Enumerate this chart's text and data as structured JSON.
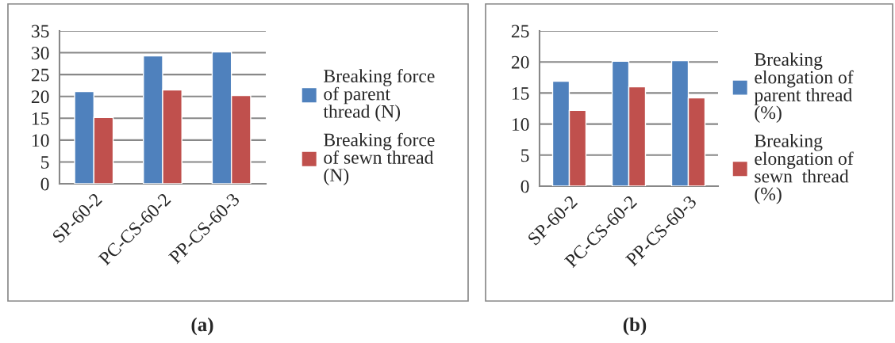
{
  "chart_data": [
    {
      "type": "bar",
      "categories": [
        "SP-60-2",
        "PC-CS-60-2",
        "PP-CS-60-3"
      ],
      "series": [
        {
          "name": "Breaking force of parent thread (N)",
          "color": "#4f81bd",
          "values": [
            21.1,
            29.3,
            30.2
          ]
        },
        {
          "name": "Breaking force of sewn thread (N)",
          "color": "#c0504d",
          "values": [
            15.2,
            21.5,
            20.2
          ]
        }
      ],
      "ylim": [
        0,
        35
      ],
      "yticks": [
        0,
        5,
        10,
        15,
        20,
        25,
        30,
        35
      ],
      "grid": "y",
      "legend": "right",
      "annotations": [
        "(a)"
      ]
    },
    {
      "type": "bar",
      "categories": [
        "SP-60-2",
        "PC-CS-60-2",
        "PP-CS-60-3"
      ],
      "series": [
        {
          "name": "Breaking elongation of parent thread (%)",
          "color": "#4f81bd",
          "values": [
            16.9,
            20.1,
            20.2
          ]
        },
        {
          "name": "Breaking elongation of sewn  thread (%)",
          "color": "#c0504d",
          "values": [
            12.2,
            16.0,
            14.2
          ]
        }
      ],
      "ylim": [
        0,
        25
      ],
      "yticks": [
        0,
        5,
        10,
        15,
        20,
        25
      ],
      "grid": "y",
      "legend": "right",
      "annotations": [
        "(b)"
      ]
    }
  ]
}
